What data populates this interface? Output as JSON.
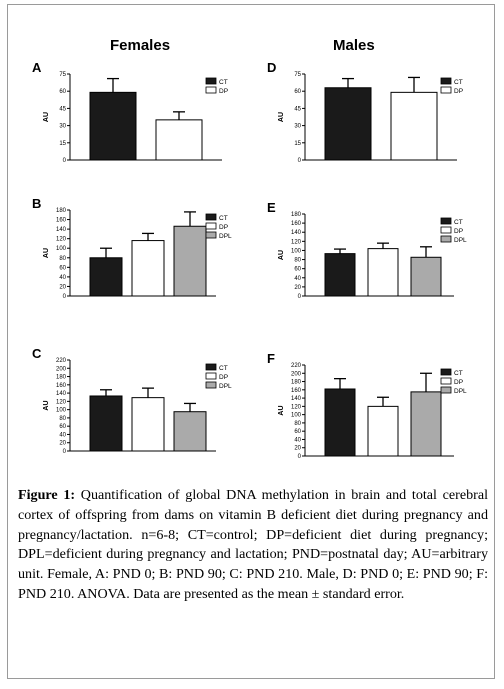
{
  "figure": {
    "col_left": "Females",
    "col_right": "Males",
    "caption_label": "Figure 1:",
    "caption_text": "Quantification of global DNA methylation in brain and total cerebral cortex of offspring from dams on vitamin B deficient diet during pregnancy and pregnancy/lactation. n=6-8; CT=control; DP=deficient diet during pregnancy; DPL=deficient during pregnancy and lactation; PND=postnatal day; AU=arbitrary unit. Female, A: PND 0; B: PND 90; C: PND 210. Male, D: PND 0; E: PND 90; F: PND 210. ANOVA. Data are presented as the mean ± standard error."
  },
  "colors": {
    "CT": "#1a1a1a",
    "DP": "#ffffff",
    "DPL": "#aaaaaa"
  },
  "chart_data": [
    {
      "panel": "A",
      "type": "bar",
      "categories": [
        "CT",
        "DP"
      ],
      "values": [
        59,
        35
      ],
      "errors": [
        12,
        7
      ],
      "ylabel": "AU",
      "ylim": [
        0,
        75
      ],
      "yticks": [
        0,
        15,
        30,
        45,
        60,
        75
      ],
      "legend": [
        "CT",
        "DP"
      ]
    },
    {
      "panel": "B",
      "type": "bar",
      "categories": [
        "CT",
        "DP",
        "DPL"
      ],
      "values": [
        80,
        116,
        146
      ],
      "errors": [
        20,
        15,
        30
      ],
      "ylabel": "AU",
      "ylim": [
        0,
        180
      ],
      "yticks": [
        0,
        20,
        40,
        60,
        80,
        100,
        120,
        140,
        160,
        180
      ],
      "legend": [
        "CT",
        "DP",
        "DPL"
      ]
    },
    {
      "panel": "C",
      "type": "bar",
      "categories": [
        "CT",
        "DP",
        "DPL"
      ],
      "values": [
        133,
        129,
        95
      ],
      "errors": [
        15,
        23,
        20
      ],
      "ylabel": "AU",
      "ylim": [
        0,
        220
      ],
      "yticks": [
        0,
        20,
        40,
        60,
        80,
        100,
        120,
        140,
        160,
        180,
        200,
        220
      ],
      "legend": [
        "CT",
        "DP",
        "DPL"
      ]
    },
    {
      "panel": "D",
      "type": "bar",
      "categories": [
        "CT",
        "DP"
      ],
      "values": [
        63,
        59
      ],
      "errors": [
        8,
        13
      ],
      "ylabel": "AU",
      "ylim": [
        0,
        75
      ],
      "yticks": [
        0,
        15,
        30,
        45,
        60,
        75
      ],
      "legend": [
        "CT",
        "DP"
      ]
    },
    {
      "panel": "E",
      "type": "bar",
      "categories": [
        "CT",
        "DP",
        "DPL"
      ],
      "values": [
        93,
        104,
        85
      ],
      "errors": [
        10,
        12,
        23
      ],
      "ylabel": "AU",
      "ylim": [
        0,
        180
      ],
      "yticks": [
        0,
        20,
        40,
        60,
        80,
        100,
        120,
        140,
        160,
        180
      ],
      "legend": [
        "CT",
        "DP",
        "DPL"
      ]
    },
    {
      "panel": "F",
      "type": "bar",
      "categories": [
        "CT",
        "DP",
        "DPL"
      ],
      "values": [
        162,
        120,
        155
      ],
      "errors": [
        25,
        22,
        45
      ],
      "ylabel": "AU",
      "ylim": [
        0,
        220
      ],
      "yticks": [
        0,
        20,
        40,
        60,
        80,
        100,
        120,
        140,
        160,
        180,
        200,
        220
      ],
      "legend": [
        "CT",
        "DP",
        "DPL"
      ]
    }
  ]
}
